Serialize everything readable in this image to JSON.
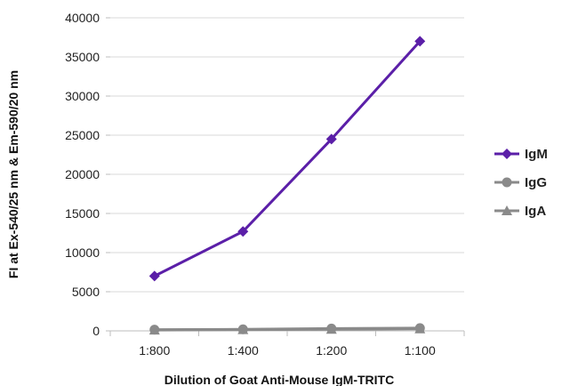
{
  "chart_data": {
    "type": "line",
    "title": "",
    "xlabel": "Dilution of Goat Anti-Mouse IgM-TRITC",
    "ylabel": "FI at Ex-540/25 nm & Em-590/20 nm",
    "categories": [
      "1:800",
      "1:400",
      "1:200",
      "1:100"
    ],
    "ylim": [
      0,
      40000
    ],
    "yticks": [
      0,
      5000,
      10000,
      15000,
      20000,
      25000,
      30000,
      35000,
      40000
    ],
    "grid": true,
    "legend_position": "right",
    "series": [
      {
        "name": "IgM",
        "values": [
          7000,
          12700,
          24500,
          37000
        ],
        "color": "#5b1fa8",
        "marker": "diamond"
      },
      {
        "name": "IgG",
        "values": [
          150,
          200,
          300,
          350
        ],
        "color": "#8a8a8a",
        "marker": "circle"
      },
      {
        "name": "IgA",
        "values": [
          100,
          150,
          200,
          250
        ],
        "color": "#8a8a8a",
        "marker": "triangle"
      }
    ]
  }
}
